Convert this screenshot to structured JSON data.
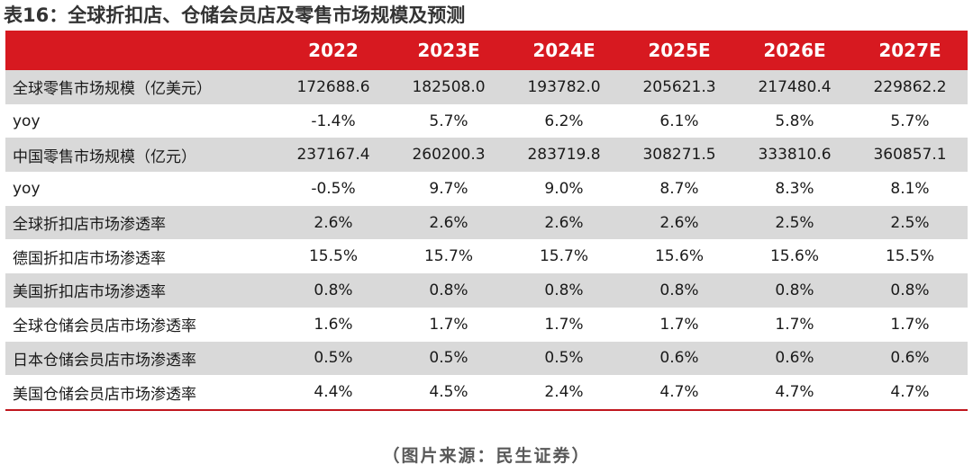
{
  "title": "表16：全球折扣店、仓储会员店及零售市场规模及预测",
  "table": {
    "header_label": "",
    "columns": [
      "2022",
      "2023E",
      "2024E",
      "2025E",
      "2026E",
      "2027E"
    ],
    "rows": [
      {
        "label": "全球零售市场规模（亿美元）",
        "values": [
          "172688.6",
          "182508.0",
          "193782.0",
          "205621.3",
          "217480.4",
          "229862.2"
        ]
      },
      {
        "label": "yoy",
        "values": [
          "-1.4%",
          "5.7%",
          "6.2%",
          "6.1%",
          "5.8%",
          "5.7%"
        ]
      },
      {
        "label": "中国零售市场规模（亿元）",
        "values": [
          "237167.4",
          "260200.3",
          "283719.8",
          "308271.5",
          "333810.6",
          "360857.1"
        ]
      },
      {
        "label": "yoy",
        "values": [
          "-0.5%",
          "9.7%",
          "9.0%",
          "8.7%",
          "8.3%",
          "8.1%"
        ]
      },
      {
        "label": "全球折扣店市场渗透率",
        "values": [
          "2.6%",
          "2.6%",
          "2.6%",
          "2.6%",
          "2.5%",
          "2.5%"
        ]
      },
      {
        "label": "德国折扣店市场渗透率",
        "values": [
          "15.5%",
          "15.7%",
          "15.7%",
          "15.6%",
          "15.6%",
          "15.5%"
        ]
      },
      {
        "label": "美国折扣店市场渗透率",
        "values": [
          "0.8%",
          "0.8%",
          "0.8%",
          "0.8%",
          "0.8%",
          "0.8%"
        ]
      },
      {
        "label": "全球仓储会员店市场渗透率",
        "values": [
          "1.6%",
          "1.7%",
          "1.7%",
          "1.7%",
          "1.7%",
          "1.7%"
        ]
      },
      {
        "label": "日本仓储会员店市场渗透率",
        "values": [
          "0.5%",
          "0.5%",
          "0.5%",
          "0.6%",
          "0.6%",
          "0.6%"
        ]
      },
      {
        "label": "美国仓储会员店市场渗透率",
        "values": [
          "4.4%",
          "4.5%",
          "2.4%",
          "4.7%",
          "4.7%",
          "4.7%"
        ]
      }
    ]
  },
  "source": "（图片来源：民生证券）",
  "colors": {
    "header_bg": "#d71920",
    "header_text": "#ffffff",
    "stripe": "#d9d9d9",
    "bottom_rule": "#c0161d"
  }
}
